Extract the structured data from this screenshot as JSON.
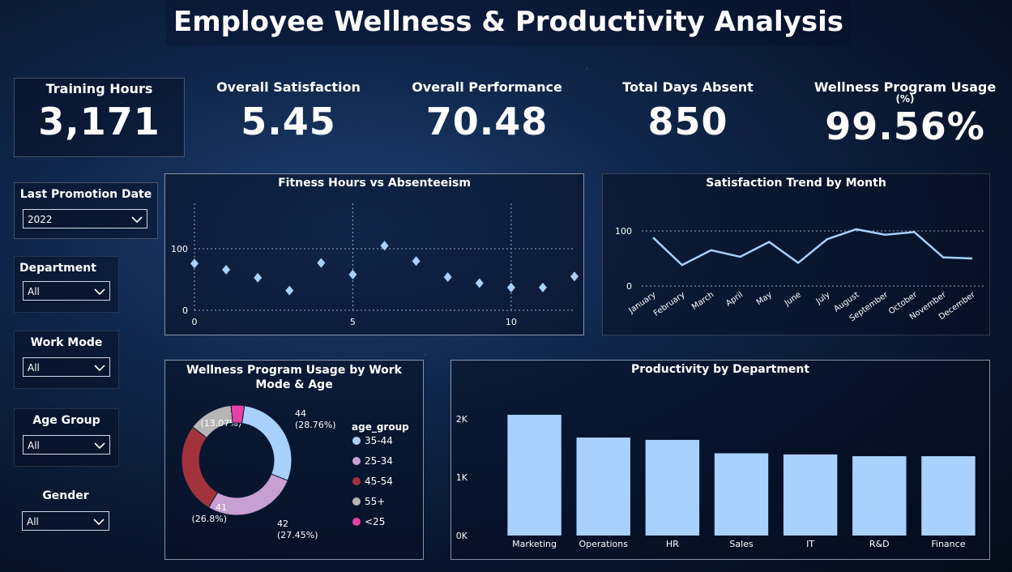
{
  "header": {
    "title": "Employee Wellness & Productivity Analysis"
  },
  "kpis": [
    {
      "label": "Training Hours",
      "value": "3,171"
    },
    {
      "label": "Overall Satisfaction",
      "value": "5.45"
    },
    {
      "label": "Overall Performance",
      "value": "70.48"
    },
    {
      "label": "Total Days Absent",
      "value": "850"
    },
    {
      "label": "Wellness Program Usage",
      "sub": "(%)",
      "value": "99.56%"
    }
  ],
  "filters": {
    "promotion": {
      "label": "Last Promotion Date",
      "value": "2022"
    },
    "department": {
      "label": "Department",
      "value": "All"
    },
    "work_mode": {
      "label": "Work Mode",
      "value": "All"
    },
    "age_group": {
      "label": "Age Group",
      "value": "All"
    },
    "gender": {
      "label": "Gender",
      "value": "All"
    }
  },
  "colors": {
    "accent": "#a8d1fd",
    "donut": [
      "#a8d1fd",
      "#c79fd3",
      "#a3323c",
      "#b5b5b5",
      "#e63fa6"
    ]
  },
  "chart_data": [
    {
      "type": "scatter",
      "title": "Fitness Hours vs Absenteeism",
      "x": [
        0,
        1,
        2,
        3,
        4,
        5,
        6,
        7,
        8,
        9,
        10,
        11,
        12
      ],
      "y": [
        76,
        66,
        53,
        32,
        77,
        58,
        105,
        80,
        54,
        44,
        37,
        37,
        55
      ],
      "xticks": [
        0,
        5,
        10
      ],
      "yticks": [
        0,
        100
      ],
      "xlim": [
        0,
        12
      ],
      "ylim": [
        0,
        100
      ]
    },
    {
      "type": "line",
      "title": "Satisfaction Trend by Month",
      "categories": [
        "January",
        "February",
        "March",
        "April",
        "May",
        "June",
        "July",
        "August",
        "September",
        "October",
        "November",
        "December"
      ],
      "values": [
        88,
        38,
        65,
        53,
        80,
        42,
        85,
        103,
        93,
        98,
        52,
        50
      ],
      "yticks": [
        0,
        100
      ],
      "ylim": [
        0,
        100
      ]
    },
    {
      "type": "pie",
      "title": "Wellness Program Usage by Work Mode & Age",
      "legend_title": "age_group",
      "slices": [
        {
          "label": "35-44",
          "value": 44,
          "pct": "(28.76%)"
        },
        {
          "label": "25-34",
          "value": 42,
          "pct": "(27.45%)"
        },
        {
          "label": "45-54",
          "value": 41,
          "pct": "(26.8%)"
        },
        {
          "label": "55+",
          "value": 20,
          "pct": "(13.07%)"
        },
        {
          "label": "<25",
          "value": 6
        }
      ]
    },
    {
      "type": "bar",
      "title": "Productivity by Department",
      "categories": [
        "Marketing",
        "Operations",
        "HR",
        "Sales",
        "IT",
        "R&D",
        "Finance"
      ],
      "values": [
        2070,
        1680,
        1640,
        1410,
        1390,
        1360,
        1360
      ],
      "yticks": [
        "0K",
        "1K",
        "2K"
      ],
      "ylim": [
        0,
        2000
      ]
    }
  ]
}
